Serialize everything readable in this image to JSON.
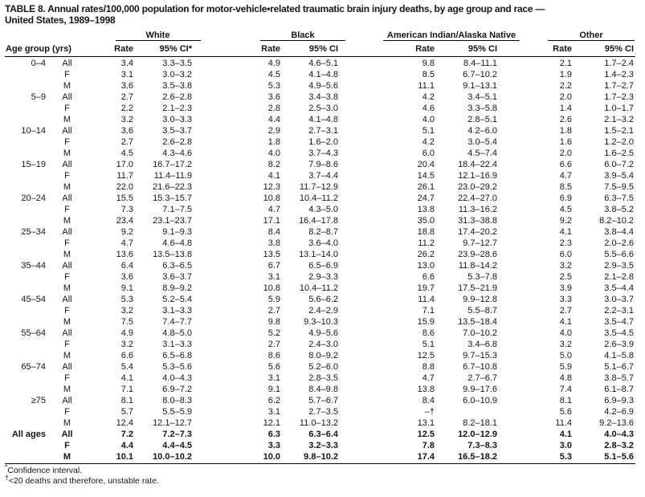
{
  "title_line1": "TABLE 8. Annual rates/100,000 population for motor-vehicle•related traumatic brain injury deaths, by age group and race —",
  "title_line2": "United States, 1989–1998",
  "header": {
    "age_col": "Age group (yrs)",
    "rate": "Rate",
    "ci": "95% CI",
    "ci_star": "95% CI*",
    "groups": {
      "white": "White",
      "black": "Black",
      "aian": "American Indian/Alaska Native",
      "other": "Other"
    }
  },
  "row_keys": [
    "age",
    "sex",
    "w_rate",
    "w_ci",
    "b_rate",
    "b_ci",
    "ai_rate",
    "ai_ci",
    "o_rate",
    "o_ci"
  ],
  "rows": [
    {
      "age": "0–4",
      "sex": "All",
      "w_rate": "3.4",
      "w_ci": "3.3–3.5",
      "b_rate": "4.9",
      "b_ci": "4.6–5.1",
      "ai_rate": "9.8",
      "ai_ci": "8.4–11.1",
      "o_rate": "2.1",
      "o_ci": "1.7–2.4"
    },
    {
      "age": "",
      "sex": "F",
      "w_rate": "3.1",
      "w_ci": "3.0–3.2",
      "b_rate": "4.5",
      "b_ci": "4.1–4.8",
      "ai_rate": "8.5",
      "ai_ci": "6.7–10.2",
      "o_rate": "1.9",
      "o_ci": "1.4–2.3"
    },
    {
      "age": "",
      "sex": "M",
      "w_rate": "3.6",
      "w_ci": "3.5–3.8",
      "b_rate": "5.3",
      "b_ci": "4.9–5.6",
      "ai_rate": "11.1",
      "ai_ci": "9.1–13.1",
      "o_rate": "2.2",
      "o_ci": "1.7–2.7"
    },
    {
      "age": "5–9",
      "sex": "All",
      "w_rate": "2.7",
      "w_ci": "2.6–2.8",
      "b_rate": "3.6",
      "b_ci": "3.4–3.8",
      "ai_rate": "4.2",
      "ai_ci": "3.4–5.1",
      "o_rate": "2.0",
      "o_ci": "1.7–2.3"
    },
    {
      "age": "",
      "sex": "F",
      "w_rate": "2.2",
      "w_ci": "2.1–2.3",
      "b_rate": "2.8",
      "b_ci": "2.5–3.0",
      "ai_rate": "4.6",
      "ai_ci": "3.3–5.8",
      "o_rate": "1.4",
      "o_ci": "1.0–1.7"
    },
    {
      "age": "",
      "sex": "M",
      "w_rate": "3.2",
      "w_ci": "3.0–3.3",
      "b_rate": "4.4",
      "b_ci": "4.1–4.8",
      "ai_rate": "4.0",
      "ai_ci": "2.8–5.1",
      "o_rate": "2.6",
      "o_ci": "2.1–3.2"
    },
    {
      "age": "10–14",
      "sex": "All",
      "w_rate": "3.6",
      "w_ci": "3.5–3.7",
      "b_rate": "2.9",
      "b_ci": "2.7–3.1",
      "ai_rate": "5.1",
      "ai_ci": "4.2–6.0",
      "o_rate": "1.8",
      "o_ci": "1.5–2.1"
    },
    {
      "age": "",
      "sex": "F",
      "w_rate": "2.7",
      "w_ci": "2.6–2.8",
      "b_rate": "1.8",
      "b_ci": "1.6–2.0",
      "ai_rate": "4.2",
      "ai_ci": "3.0–5.4",
      "o_rate": "1.6",
      "o_ci": "1.2–2.0"
    },
    {
      "age": "",
      "sex": "M",
      "w_rate": "4.5",
      "w_ci": "4.3–4.6",
      "b_rate": "4.0",
      "b_ci": "3.7–4.3",
      "ai_rate": "6.0",
      "ai_ci": "4.5–7.4",
      "o_rate": "2.0",
      "o_ci": "1.6–2.5"
    },
    {
      "age": "15–19",
      "sex": "All",
      "w_rate": "17.0",
      "w_ci": "16.7–17.2",
      "b_rate": "8.2",
      "b_ci": "7.9–8.6",
      "ai_rate": "20.4",
      "ai_ci": "18.4–22.4",
      "o_rate": "6.6",
      "o_ci": "6.0–7.2"
    },
    {
      "age": "",
      "sex": "F",
      "w_rate": "11.7",
      "w_ci": "11.4–11.9",
      "b_rate": "4.1",
      "b_ci": "3.7–4.4",
      "ai_rate": "14.5",
      "ai_ci": "12.1–16.9",
      "o_rate": "4.7",
      "o_ci": "3.9–5.4"
    },
    {
      "age": "",
      "sex": "M",
      "w_rate": "22.0",
      "w_ci": "21.6–22.3",
      "b_rate": "12.3",
      "b_ci": "11.7–12.9",
      "ai_rate": "26.1",
      "ai_ci": "23.0–29.2",
      "o_rate": "8.5",
      "o_ci": "7.5–9.5"
    },
    {
      "age": "20–24",
      "sex": "All",
      "w_rate": "15.5",
      "w_ci": "15.3–15.7",
      "b_rate": "10.8",
      "b_ci": "10.4–11.2",
      "ai_rate": "24.7",
      "ai_ci": "22.4–27.0",
      "o_rate": "6.9",
      "o_ci": "6.3–7.5"
    },
    {
      "age": "",
      "sex": "F",
      "w_rate": "7.3",
      "w_ci": "7.1–7.5",
      "b_rate": "4.7",
      "b_ci": "4.3–5.0",
      "ai_rate": "13.8",
      "ai_ci": "11.3–16.2",
      "o_rate": "4.5",
      "o_ci": "3.8–5.2"
    },
    {
      "age": "",
      "sex": "M",
      "w_rate": "23.4",
      "w_ci": "23.1–23.7",
      "b_rate": "17.1",
      "b_ci": "16.4–17.8",
      "ai_rate": "35.0",
      "ai_ci": "31.3–38.8",
      "o_rate": "9.2",
      "o_ci": "8.2–10.2"
    },
    {
      "age": "25–34",
      "sex": "All",
      "w_rate": "9.2",
      "w_ci": "9.1–9.3",
      "b_rate": "8.4",
      "b_ci": "8.2–8.7",
      "ai_rate": "18.8",
      "ai_ci": "17.4–20.2",
      "o_rate": "4.1",
      "o_ci": "3.8–4.4"
    },
    {
      "age": "",
      "sex": "F",
      "w_rate": "4.7",
      "w_ci": "4.6–4.8",
      "b_rate": "3.8",
      "b_ci": "3.6–4.0",
      "ai_rate": "11.2",
      "ai_ci": "9.7–12.7",
      "o_rate": "2.3",
      "o_ci": "2.0–2.6"
    },
    {
      "age": "",
      "sex": "M",
      "w_rate": "13.6",
      "w_ci": "13.5–13.8",
      "b_rate": "13.5",
      "b_ci": "13.1–14.0",
      "ai_rate": "26.2",
      "ai_ci": "23.9–28.6",
      "o_rate": "6.0",
      "o_ci": "5.5–6.6"
    },
    {
      "age": "35–44",
      "sex": "All",
      "w_rate": "6.4",
      "w_ci": "6.3–6.5",
      "b_rate": "6.7",
      "b_ci": "6.5–6.9",
      "ai_rate": "13.0",
      "ai_ci": "11.8–14.2",
      "o_rate": "3.2",
      "o_ci": "2.9–3.5"
    },
    {
      "age": "",
      "sex": "F",
      "w_rate": "3.6",
      "w_ci": "3.6–3.7",
      "b_rate": "3.1",
      "b_ci": "2.9–3.3",
      "ai_rate": "6.6",
      "ai_ci": "5.3–7.8",
      "o_rate": "2.5",
      "o_ci": "2.1–2.8"
    },
    {
      "age": "",
      "sex": "M",
      "w_rate": "9.1",
      "w_ci": "8.9–9.2",
      "b_rate": "10.8",
      "b_ci": "10.4–11.2",
      "ai_rate": "19.7",
      "ai_ci": "17.5–21.9",
      "o_rate": "3.9",
      "o_ci": "3.5–4.4"
    },
    {
      "age": "45–54",
      "sex": "All",
      "w_rate": "5.3",
      "w_ci": "5.2–5.4",
      "b_rate": "5.9",
      "b_ci": "5.6–6.2",
      "ai_rate": "11.4",
      "ai_ci": "9.9–12.8",
      "o_rate": "3.3",
      "o_ci": "3.0–3.7"
    },
    {
      "age": "",
      "sex": "F",
      "w_rate": "3.2",
      "w_ci": "3.1–3.3",
      "b_rate": "2.7",
      "b_ci": "2.4–2.9",
      "ai_rate": "7.1",
      "ai_ci": "5.5–8.7",
      "o_rate": "2.7",
      "o_ci": "2.2–3.1"
    },
    {
      "age": "",
      "sex": "M",
      "w_rate": "7.5",
      "w_ci": "7.4–7.7",
      "b_rate": "9.8",
      "b_ci": "9.3–10.3",
      "ai_rate": "15.9",
      "ai_ci": "13.5–18.4",
      "o_rate": "4.1",
      "o_ci": "3.5–4.7"
    },
    {
      "age": "55–64",
      "sex": "All",
      "w_rate": "4.9",
      "w_ci": "4.8–5.0",
      "b_rate": "5.2",
      "b_ci": "4.9–5.6",
      "ai_rate": "8.6",
      "ai_ci": "7.0–10.2",
      "o_rate": "4.0",
      "o_ci": "3.5–4.5"
    },
    {
      "age": "",
      "sex": "F",
      "w_rate": "3.2",
      "w_ci": "3.1–3.3",
      "b_rate": "2.7",
      "b_ci": "2.4–3.0",
      "ai_rate": "5.1",
      "ai_ci": "3.4–6.8",
      "o_rate": "3.2",
      "o_ci": "2.6–3.9"
    },
    {
      "age": "",
      "sex": "M",
      "w_rate": "6.6",
      "w_ci": "6.5–6.8",
      "b_rate": "8.6",
      "b_ci": "8.0–9.2",
      "ai_rate": "12.5",
      "ai_ci": "9.7–15.3",
      "o_rate": "5.0",
      "o_ci": "4.1–5.8"
    },
    {
      "age": "65–74",
      "sex": "All",
      "w_rate": "5.4",
      "w_ci": "5.3–5.6",
      "b_rate": "5.6",
      "b_ci": "5.2–6.0",
      "ai_rate": "8.8",
      "ai_ci": "6.7–10.8",
      "o_rate": "5.9",
      "o_ci": "5.1–6.7"
    },
    {
      "age": "",
      "sex": "F",
      "w_rate": "4.1",
      "w_ci": "4.0–4.3",
      "b_rate": "3.1",
      "b_ci": "2.8–3.5",
      "ai_rate": "4.7",
      "ai_ci": "2.7–6.7",
      "o_rate": "4.8",
      "o_ci": "3.8–5.7"
    },
    {
      "age": "",
      "sex": "M",
      "w_rate": "7.1",
      "w_ci": "6.9–7.2",
      "b_rate": "9.1",
      "b_ci": "8.4–9.8",
      "ai_rate": "13.8",
      "ai_ci": "9.9–17.6",
      "o_rate": "7.4",
      "o_ci": "6.1–8.7"
    },
    {
      "age": "≥75",
      "sex": "All",
      "w_rate": "8.1",
      "w_ci": "8.0–8.3",
      "b_rate": "6.2",
      "b_ci": "5.7–6.7",
      "ai_rate": "8.4",
      "ai_ci": "6.0–10.9",
      "o_rate": "8.1",
      "o_ci": "6.9–9.3"
    },
    {
      "age": "",
      "sex": "F",
      "w_rate": "5.7",
      "w_ci": "5.5–5.9",
      "b_rate": "3.1",
      "b_ci": "2.7–3.5",
      "ai_rate": "–†",
      "ai_ci": "",
      "o_rate": "5.6",
      "o_ci": "4.2–6.9"
    },
    {
      "age": "",
      "sex": "M",
      "w_rate": "12.4",
      "w_ci": "12.1–12.7",
      "b_rate": "12.1",
      "b_ci": "11.0–13.2",
      "ai_rate": "13.1",
      "ai_ci": "8.2–18.1",
      "o_rate": "11.4",
      "o_ci": "9.2–13.6"
    },
    {
      "age": "All ages",
      "sex": "All",
      "bold": true,
      "w_rate": "7.2",
      "w_ci": "7.2–7.3",
      "b_rate": "6.3",
      "b_ci": "6.3–6.4",
      "ai_rate": "12.5",
      "ai_ci": "12.0–12.9",
      "o_rate": "4.1",
      "o_ci": "4.0–4.3"
    },
    {
      "age": "",
      "sex": "F",
      "bold": true,
      "w_rate": "4.4",
      "w_ci": "4.4–4.5",
      "b_rate": "3.3",
      "b_ci": "3.2–3.3",
      "ai_rate": "7.8",
      "ai_ci": "7.3–8.3",
      "o_rate": "3.0",
      "o_ci": "2.8–3.2"
    },
    {
      "age": "",
      "sex": "M",
      "bold": true,
      "w_rate": "10.1",
      "w_ci": "10.0–10.2",
      "b_rate": "10.0",
      "b_ci": "9.8–10.2",
      "ai_rate": "17.4",
      "ai_ci": "16.5–18.2",
      "o_rate": "5.3",
      "o_ci": "5.1–5.6"
    }
  ],
  "footnotes": [
    {
      "sym": "*",
      "text": "Confidence interval."
    },
    {
      "sym": "†",
      "text": "<20 deaths and therefore, unstable rate."
    }
  ]
}
